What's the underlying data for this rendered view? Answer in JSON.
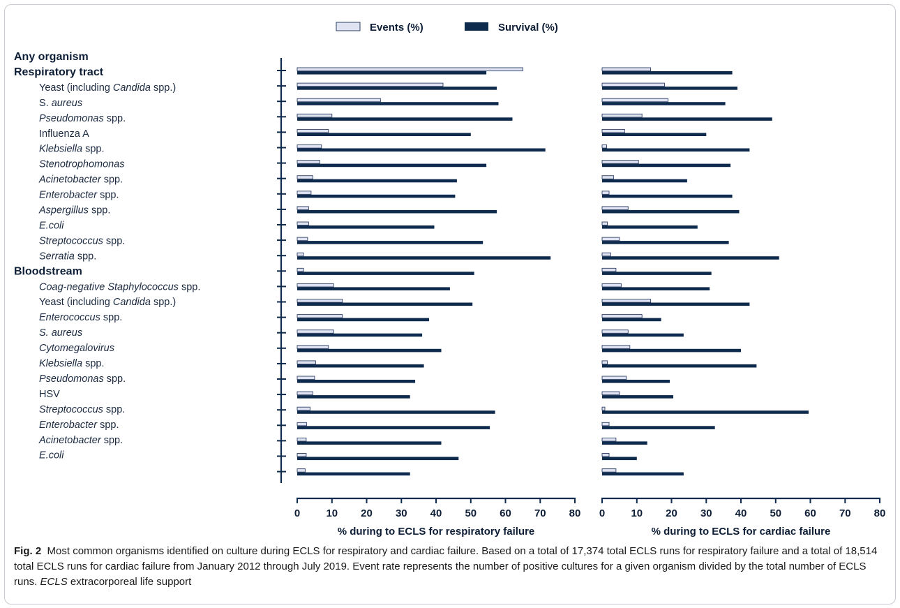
{
  "legend": {
    "events_label": "Events (%)",
    "survival_label": "Survival (%)"
  },
  "colors": {
    "events_fill": "#dfe3f2",
    "events_stroke": "#2e3f63",
    "survival_fill": "#0e2a4c",
    "axis": "#0e2a4c"
  },
  "caption": {
    "fig_label": "Fig. 2",
    "text_1": "Most common organisms identified on culture during ECLS for respiratory and cardiac failure. Based on a total of 17,374 total ECLS runs for respiratory failure and a total of 18,514 total ECLS runs for cardiac failure from January 2012 through July 2019. Event rate represents the number of positive cultures for a given organism divided by the total number of ECLS runs. ",
    "italic": "ECLS",
    "text_2": " extracorporeal life support"
  },
  "chart_data": {
    "type": "bar",
    "orientation": "horizontal",
    "xlim": [
      0,
      80
    ],
    "xticks": [
      "0",
      "10",
      "20",
      "30",
      "40",
      "50",
      "60",
      "70",
      "80"
    ],
    "categories": [
      {
        "label": "Any organism",
        "bold": true
      },
      {
        "label": "Respiratory tract",
        "bold": true
      },
      {
        "label": "Yeast (including Candida spp.)",
        "bold": false
      },
      {
        "label": "S. aureus",
        "bold": false
      },
      {
        "label": "Pseudomonas spp.",
        "bold": false
      },
      {
        "label": "Influenza A",
        "bold": false
      },
      {
        "label": "Klebsiella spp.",
        "bold": false
      },
      {
        "label": "Stenotrophomonas",
        "bold": false
      },
      {
        "label": "Acinetobacter spp.",
        "bold": false
      },
      {
        "label": "Enterobacter spp.",
        "bold": false
      },
      {
        "label": "Aspergillus spp.",
        "bold": false
      },
      {
        "label": "E.coli",
        "bold": false
      },
      {
        "label": "Streptococcus spp.",
        "bold": false
      },
      {
        "label": "Serratia spp.",
        "bold": false
      },
      {
        "label": "Bloodstream",
        "bold": true
      },
      {
        "label": "Coag-negative Staphylococcus spp.",
        "bold": false
      },
      {
        "label": "Yeast (including Candida spp.)",
        "bold": false
      },
      {
        "label": "Enterococcus spp.",
        "bold": false
      },
      {
        "label": "S. aureus",
        "bold": false
      },
      {
        "label": "Cytomegalovirus",
        "bold": false
      },
      {
        "label": "Klebsiella spp.",
        "bold": false
      },
      {
        "label": "Pseudomonas spp.",
        "bold": false
      },
      {
        "label": "HSV",
        "bold": false
      },
      {
        "label": "Streptococcus spp.",
        "bold": false
      },
      {
        "label": "Enterobacter spp.",
        "bold": false
      },
      {
        "label": "Acinetobacter spp.",
        "bold": false
      },
      {
        "label": "E.coli",
        "bold": false
      }
    ],
    "panels": [
      {
        "xlabel": "% during to ECLS for respiratory failure",
        "series": [
          {
            "name": "Events (%)",
            "values": [
              65,
              42,
              24,
              10,
              9,
              7,
              6.5,
              4.5,
              4,
              3.3,
              3.3,
              3,
              1.8,
              1.8,
              10.5,
              13,
              13,
              10.5,
              9,
              5.3,
              5,
              4.5,
              3.7,
              2.7,
              2.6,
              2.6,
              2.3
            ]
          },
          {
            "name": "Survival (%)",
            "values": [
              54.5,
              57.5,
              58,
              62,
              50,
              71.5,
              54.5,
              46,
              45.5,
              57.5,
              39.5,
              53.5,
              73,
              51,
              44,
              50.5,
              38,
              36,
              41.5,
              36.5,
              34,
              32.5,
              57,
              55.5,
              41.5,
              46.5,
              32.5
            ]
          }
        ]
      },
      {
        "xlabel": "% during to ECLS for cardiac failure",
        "series": [
          {
            "name": "Events (%)",
            "values": [
              14,
              18,
              19,
              11.5,
              6.5,
              1.3,
              10.5,
              3.3,
              2,
              7.5,
              1.5,
              5,
              2.5,
              4,
              5.5,
              14,
              11.5,
              7.5,
              8,
              1.5,
              7,
              5,
              0.8,
              2,
              4,
              2,
              4
            ]
          },
          {
            "name": "Survival (%)",
            "values": [
              37.5,
              39,
              35.5,
              49,
              30,
              42.5,
              37,
              24.5,
              37.5,
              39.5,
              27.5,
              36.5,
              51,
              31.5,
              31,
              42.5,
              17,
              23.5,
              40,
              44.5,
              19.5,
              20.5,
              59.5,
              32.5,
              13,
              10,
              23.5
            ]
          }
        ]
      }
    ]
  }
}
